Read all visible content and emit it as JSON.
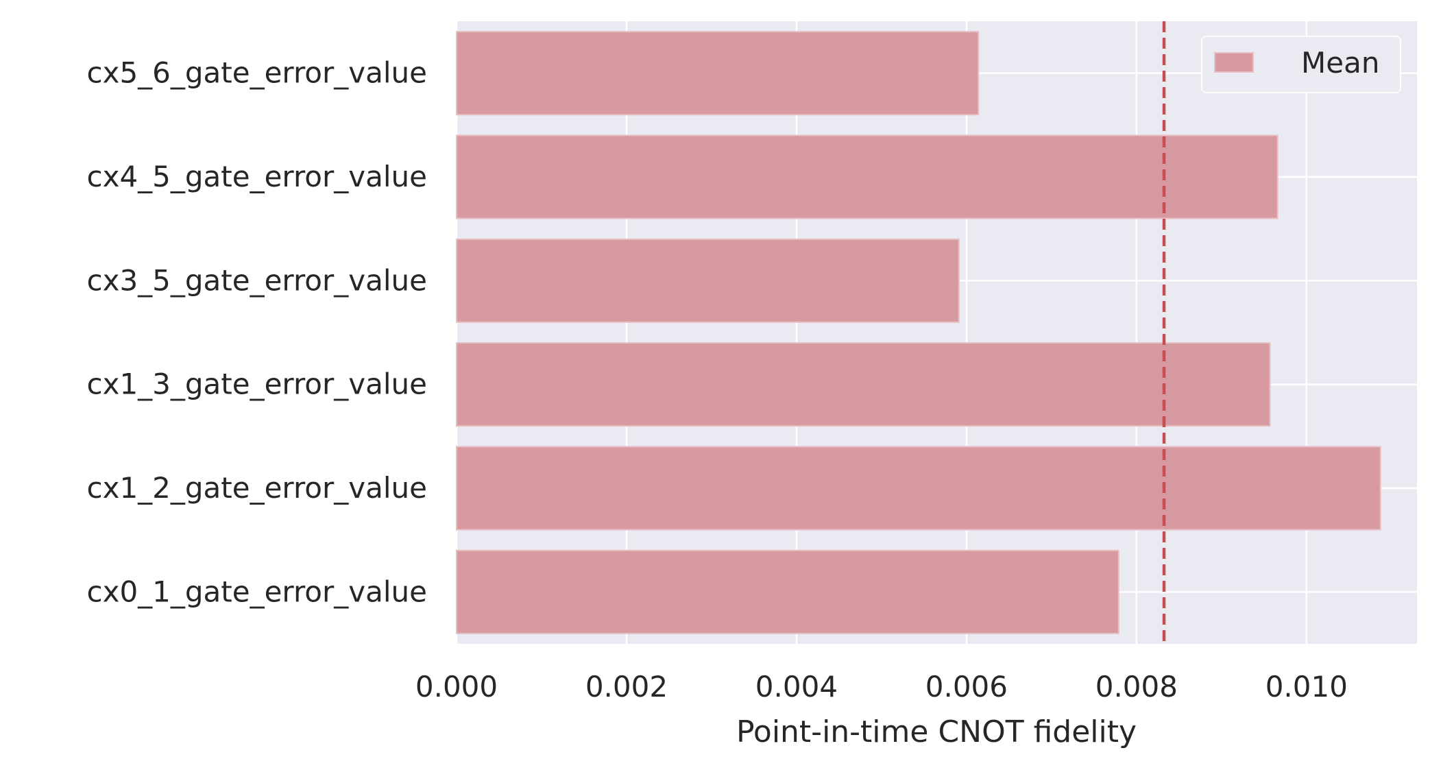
{
  "chart_data": {
    "type": "bar",
    "orientation": "horizontal",
    "categories": [
      "cx5_6_gate_error_value",
      "cx4_5_gate_error_value",
      "cx3_5_gate_error_value",
      "cx1_3_gate_error_value",
      "cx1_2_gate_error_value",
      "cx0_1_gate_error_value"
    ],
    "values": [
      0.00614,
      0.00966,
      0.00591,
      0.00957,
      0.01087,
      0.00779
    ],
    "mean_line": 0.008324,
    "xlabel": "Point-in-time CNOT fidelity",
    "ylabel": "",
    "title": "",
    "xlim": [
      0.0,
      0.0113
    ],
    "xticks": [
      0.0,
      0.002,
      0.004,
      0.006,
      0.008,
      0.01
    ],
    "xtick_labels": [
      "0.000",
      "0.002",
      "0.004",
      "0.006",
      "0.008",
      "0.010"
    ],
    "legend": {
      "placement": "top-right",
      "entries": [
        "Mean"
      ]
    },
    "grid": true,
    "colors": {
      "bar": "#d69aa0",
      "bar_edge": "#e8bfc3",
      "mean_line": "#c44e52",
      "background": "#eaeaf2",
      "grid": "#ffffff",
      "text": "#262626"
    }
  }
}
